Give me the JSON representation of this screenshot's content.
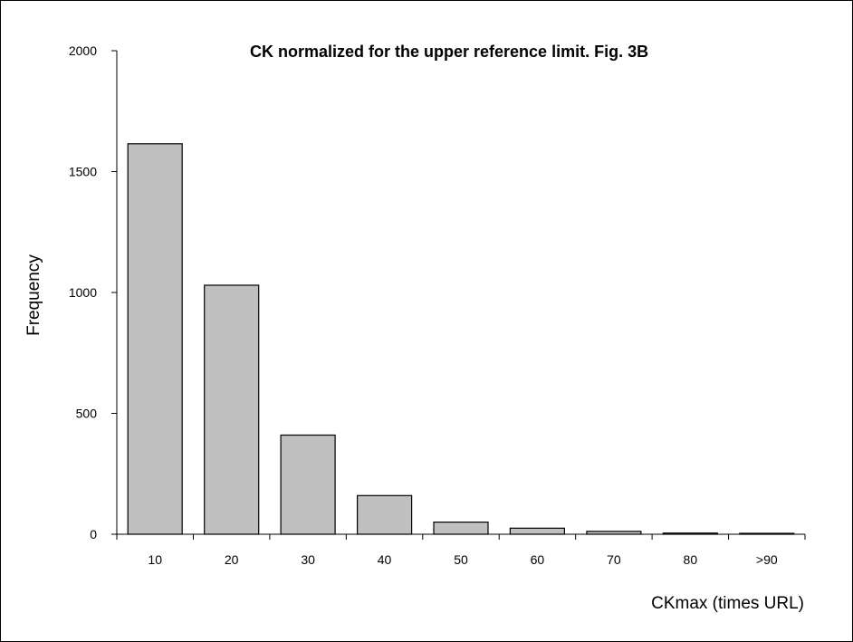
{
  "chart_data": {
    "type": "bar",
    "title": "CK normalized for the upper reference limit. Fig. 3B",
    "xlabel": "CKmax (times URL)",
    "ylabel": "Frequency",
    "categories": [
      "10",
      "20",
      "30",
      "40",
      "50",
      "60",
      "70",
      "80",
      ">90"
    ],
    "values": [
      1615,
      1030,
      410,
      160,
      50,
      25,
      12,
      5,
      3
    ],
    "ylim": [
      0,
      2000
    ],
    "yticks": [
      0,
      500,
      1000,
      1500,
      2000
    ],
    "grid": false,
    "legend": "none",
    "colors": {
      "bar_fill": "#c0c0c0",
      "bar_stroke": "#000000"
    }
  }
}
